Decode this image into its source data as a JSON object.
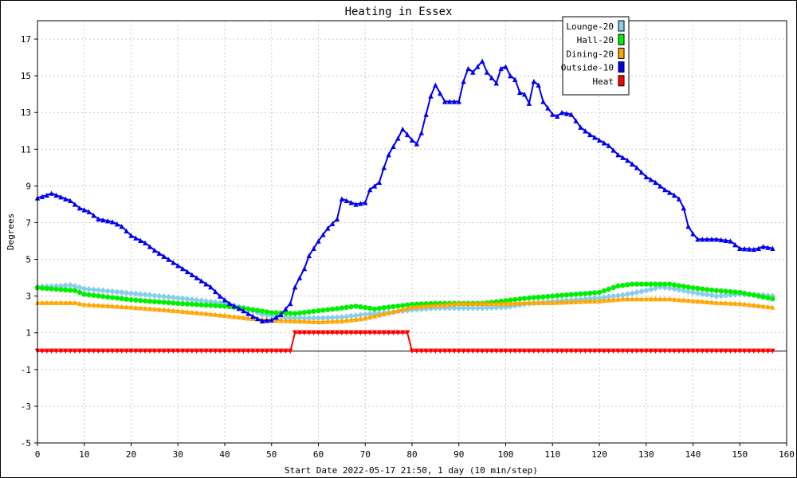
{
  "chart_data": {
    "type": "line",
    "title": "Heating in Essex",
    "xlabel": "Start Date 2022-05-17 21:50, 1 day (10 min/step)",
    "ylabel": "Degrees",
    "xlim": [
      0,
      160
    ],
    "ylim": [
      -5,
      18
    ],
    "x_ticks": [
      0,
      10,
      20,
      30,
      40,
      50,
      60,
      70,
      80,
      90,
      100,
      110,
      120,
      130,
      140,
      150,
      160
    ],
    "y_ticks": [
      -5,
      -3,
      -1,
      1,
      3,
      5,
      7,
      9,
      11,
      13,
      15,
      17
    ],
    "grid": true,
    "legend_position": "top-right",
    "series": [
      {
        "name": "Lounge-20",
        "color": "#87ceeb",
        "marker": "diamond",
        "points": [
          [
            0,
            3.5
          ],
          [
            5,
            3.55
          ],
          [
            7,
            3.6
          ],
          [
            10,
            3.4
          ],
          [
            20,
            3.15
          ],
          [
            30,
            2.9
          ],
          [
            40,
            2.6
          ],
          [
            45,
            2.3
          ],
          [
            48,
            2.0
          ],
          [
            52,
            1.85
          ],
          [
            55,
            1.8
          ],
          [
            60,
            1.8
          ],
          [
            65,
            1.85
          ],
          [
            70,
            2.0
          ],
          [
            75,
            2.1
          ],
          [
            80,
            2.25
          ],
          [
            85,
            2.35
          ],
          [
            90,
            2.35
          ],
          [
            95,
            2.35
          ],
          [
            100,
            2.4
          ],
          [
            105,
            2.6
          ],
          [
            110,
            2.7
          ],
          [
            115,
            2.8
          ],
          [
            120,
            2.9
          ],
          [
            125,
            3.05
          ],
          [
            130,
            3.3
          ],
          [
            133,
            3.5
          ],
          [
            136,
            3.4
          ],
          [
            140,
            3.2
          ],
          [
            145,
            3.0
          ],
          [
            150,
            3.1
          ],
          [
            155,
            3.05
          ],
          [
            157,
            3.0
          ]
        ]
      },
      {
        "name": "Hall-20",
        "color": "#00ee00",
        "marker": "circle",
        "points": [
          [
            0,
            3.45
          ],
          [
            8,
            3.3
          ],
          [
            10,
            3.1
          ],
          [
            20,
            2.8
          ],
          [
            30,
            2.6
          ],
          [
            40,
            2.45
          ],
          [
            45,
            2.3
          ],
          [
            50,
            2.1
          ],
          [
            55,
            2.05
          ],
          [
            60,
            2.2
          ],
          [
            65,
            2.35
          ],
          [
            68,
            2.45
          ],
          [
            72,
            2.3
          ],
          [
            75,
            2.4
          ],
          [
            80,
            2.55
          ],
          [
            85,
            2.6
          ],
          [
            90,
            2.6
          ],
          [
            95,
            2.6
          ],
          [
            100,
            2.75
          ],
          [
            105,
            2.9
          ],
          [
            110,
            3.0
          ],
          [
            115,
            3.1
          ],
          [
            120,
            3.2
          ],
          [
            124,
            3.55
          ],
          [
            127,
            3.65
          ],
          [
            135,
            3.65
          ],
          [
            140,
            3.45
          ],
          [
            145,
            3.3
          ],
          [
            150,
            3.2
          ],
          [
            155,
            2.95
          ],
          [
            157,
            2.85
          ]
        ]
      },
      {
        "name": "Dining-20",
        "color": "#ffa500",
        "marker": "triangle-up",
        "points": [
          [
            0,
            2.65
          ],
          [
            8,
            2.65
          ],
          [
            10,
            2.55
          ],
          [
            20,
            2.4
          ],
          [
            30,
            2.2
          ],
          [
            40,
            1.95
          ],
          [
            45,
            1.8
          ],
          [
            50,
            1.7
          ],
          [
            55,
            1.65
          ],
          [
            60,
            1.6
          ],
          [
            65,
            1.65
          ],
          [
            70,
            1.8
          ],
          [
            75,
            2.1
          ],
          [
            80,
            2.4
          ],
          [
            85,
            2.5
          ],
          [
            90,
            2.6
          ],
          [
            95,
            2.6
          ],
          [
            100,
            2.6
          ],
          [
            105,
            2.65
          ],
          [
            110,
            2.65
          ],
          [
            115,
            2.7
          ],
          [
            120,
            2.75
          ],
          [
            125,
            2.85
          ],
          [
            130,
            2.85
          ],
          [
            135,
            2.85
          ],
          [
            140,
            2.75
          ],
          [
            145,
            2.65
          ],
          [
            150,
            2.6
          ],
          [
            155,
            2.45
          ],
          [
            157,
            2.4
          ]
        ]
      },
      {
        "name": "Outside-10",
        "color": "#0000ee",
        "marker": "triangle-up",
        "points": [
          [
            0,
            8.35
          ],
          [
            2,
            8.5
          ],
          [
            3,
            8.6
          ],
          [
            5,
            8.4
          ],
          [
            7,
            8.2
          ],
          [
            9,
            7.8
          ],
          [
            11,
            7.6
          ],
          [
            13,
            7.2
          ],
          [
            16,
            7.05
          ],
          [
            18,
            6.8
          ],
          [
            20,
            6.3
          ],
          [
            23,
            5.9
          ],
          [
            25,
            5.5
          ],
          [
            28,
            5.0
          ],
          [
            31,
            4.5
          ],
          [
            34,
            4.0
          ],
          [
            37,
            3.5
          ],
          [
            39,
            3.0
          ],
          [
            41,
            2.6
          ],
          [
            44,
            2.2
          ],
          [
            46,
            1.9
          ],
          [
            48,
            1.65
          ],
          [
            50,
            1.7
          ],
          [
            52,
            2.0
          ],
          [
            54,
            2.6
          ],
          [
            55,
            3.5
          ],
          [
            57,
            4.5
          ],
          [
            58,
            5.2
          ],
          [
            60,
            6.0
          ],
          [
            62,
            6.7
          ],
          [
            64,
            7.2
          ],
          [
            65,
            8.3
          ],
          [
            66,
            8.2
          ],
          [
            68,
            8.0
          ],
          [
            70,
            8.1
          ],
          [
            71,
            8.8
          ],
          [
            73,
            9.2
          ],
          [
            74,
            10.0
          ],
          [
            75,
            10.7
          ],
          [
            77,
            11.6
          ],
          [
            78,
            12.1
          ],
          [
            80,
            11.5
          ],
          [
            81,
            11.3
          ],
          [
            82,
            11.9
          ],
          [
            84,
            13.9
          ],
          [
            85,
            14.5
          ],
          [
            87,
            13.6
          ],
          [
            90,
            13.6
          ],
          [
            91,
            14.7
          ],
          [
            92,
            15.4
          ],
          [
            93,
            15.2
          ],
          [
            95,
            15.8
          ],
          [
            96,
            15.2
          ],
          [
            98,
            14.6
          ],
          [
            99,
            15.4
          ],
          [
            100,
            15.5
          ],
          [
            101,
            15.0
          ],
          [
            102,
            14.8
          ],
          [
            103,
            14.1
          ],
          [
            104,
            14.0
          ],
          [
            105,
            13.5
          ],
          [
            106,
            14.7
          ],
          [
            107,
            14.5
          ],
          [
            108,
            13.6
          ],
          [
            110,
            12.9
          ],
          [
            111,
            12.8
          ],
          [
            112,
            13.0
          ],
          [
            114,
            12.9
          ],
          [
            116,
            12.2
          ],
          [
            118,
            11.8
          ],
          [
            120,
            11.5
          ],
          [
            122,
            11.2
          ],
          [
            124,
            10.7
          ],
          [
            126,
            10.4
          ],
          [
            128,
            10.0
          ],
          [
            130,
            9.5
          ],
          [
            132,
            9.2
          ],
          [
            134,
            8.8
          ],
          [
            136,
            8.5
          ],
          [
            137,
            8.3
          ],
          [
            138,
            7.8
          ],
          [
            139,
            6.8
          ],
          [
            140,
            6.4
          ],
          [
            141,
            6.1
          ],
          [
            145,
            6.1
          ],
          [
            148,
            6.0
          ],
          [
            150,
            5.6
          ],
          [
            153,
            5.55
          ],
          [
            154,
            5.6
          ],
          [
            155,
            5.7
          ],
          [
            157,
            5.6
          ]
        ]
      },
      {
        "name": "Heat",
        "color": "#ff0000",
        "marker": "triangle-down",
        "points": [
          [
            0,
            0
          ],
          [
            54,
            0
          ],
          [
            55,
            1
          ],
          [
            79,
            1
          ],
          [
            80,
            0
          ],
          [
            157,
            0
          ]
        ]
      }
    ]
  }
}
